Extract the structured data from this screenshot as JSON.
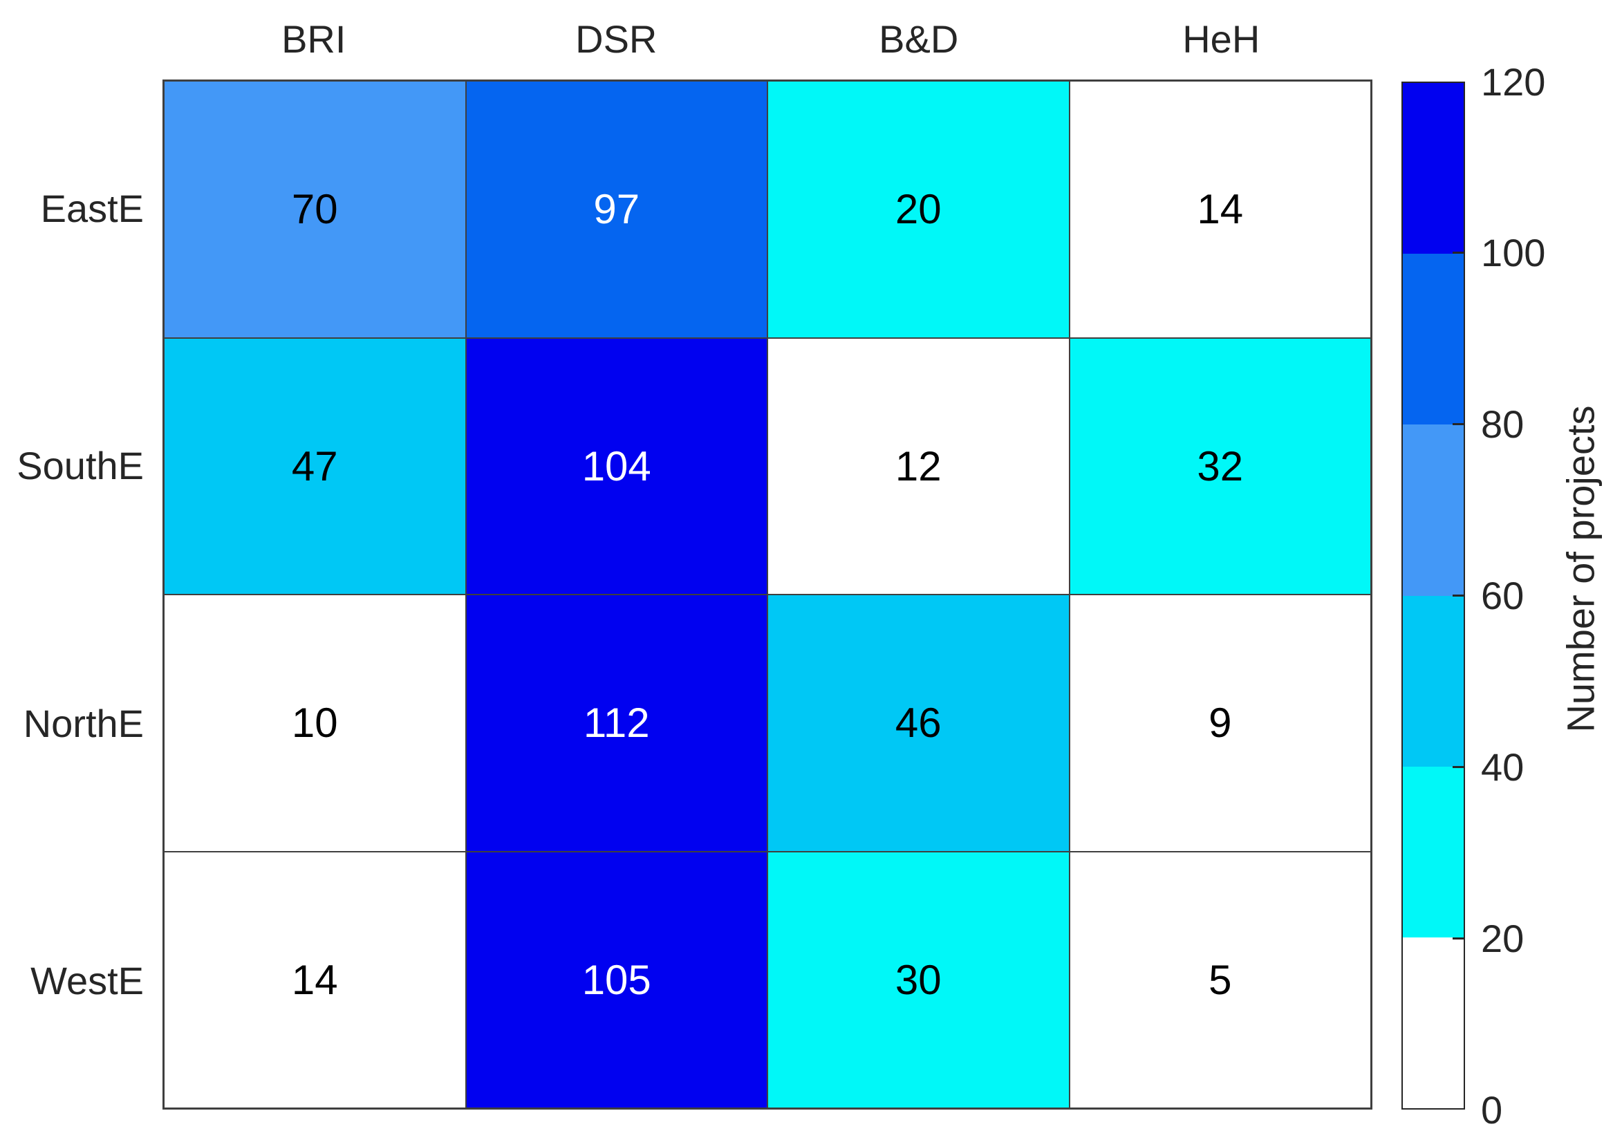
{
  "chart_data": {
    "type": "heatmap",
    "rows": [
      "EastE",
      "SouthE",
      "NorthE",
      "WestE"
    ],
    "columns": [
      "BRI",
      "DSR",
      "B&D",
      "HeH"
    ],
    "values": [
      [
        70,
        97,
        20,
        14
      ],
      [
        47,
        104,
        12,
        32
      ],
      [
        10,
        112,
        46,
        9
      ],
      [
        14,
        105,
        30,
        5
      ]
    ],
    "value_range": [
      0,
      120
    ],
    "grid_on": true,
    "grid_line_color": "#3f3f3f",
    "background_color": "#ffffff",
    "text_color_dark": "#000000",
    "text_color_light": "#ffffff",
    "white_text_threshold": 80,
    "colorbar": {
      "label": "Number of projects",
      "position": "right",
      "ticks": [
        0,
        20,
        40,
        60,
        80,
        100,
        120
      ],
      "bands": [
        {
          "from": 0,
          "to": 20,
          "color": "#ffffff"
        },
        {
          "from": 20,
          "to": 40,
          "color": "#00f8f8"
        },
        {
          "from": 40,
          "to": 60,
          "color": "#00c8f5"
        },
        {
          "from": 60,
          "to": 80,
          "color": "#4398f7"
        },
        {
          "from": 80,
          "to": 100,
          "color": "#0565f0"
        },
        {
          "from": 100,
          "to": 120,
          "color": "#0101f0"
        }
      ]
    }
  }
}
